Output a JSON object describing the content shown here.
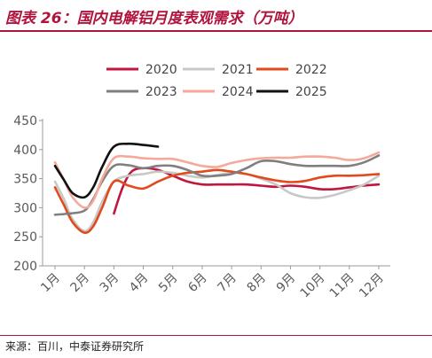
{
  "title": "图表 26：国内电解铝月度表观需求（万吨）",
  "source": "来源：百川，中泰证券研究所",
  "chart_data": {
    "type": "line",
    "title": "国内电解铝月度表观需求（万吨）",
    "xlabel": "",
    "ylabel": "",
    "ylim": [
      200,
      450
    ],
    "yticks": [
      200,
      250,
      300,
      350,
      400,
      450
    ],
    "categories": [
      "1月",
      "2月",
      "3月",
      "4月",
      "5月",
      "6月",
      "7月",
      "8月",
      "9月",
      "10月",
      "11月",
      "12月"
    ],
    "grid": false,
    "legend_position": "top",
    "series": [
      {
        "name": "2020",
        "color": "#c0163f",
        "x": [
          3.0,
          3.3,
          3.6,
          4.0,
          4.5,
          5.0,
          5.5,
          6.0,
          6.5,
          7.0,
          7.5,
          8.0,
          8.5,
          9.0,
          9.5,
          10.0,
          10.5,
          11.0,
          11.5,
          12.0
        ],
        "values": [
          290,
          335,
          362,
          368,
          365,
          355,
          345,
          340,
          340,
          340,
          340,
          338,
          336,
          338,
          336,
          332,
          332,
          335,
          338,
          340
        ]
      },
      {
        "name": "2021",
        "color": "#c8c8c8",
        "x": [
          1.0,
          1.3,
          1.6,
          2.0,
          2.3,
          2.6,
          3.0,
          3.5,
          4.0,
          4.5,
          5.0,
          5.5,
          6.0,
          6.5,
          7.0,
          7.5,
          8.0,
          8.5,
          9.0,
          9.5,
          10.0,
          10.5,
          11.0,
          11.5,
          12.0
        ],
        "values": [
          345,
          315,
          280,
          260,
          275,
          310,
          345,
          355,
          358,
          362,
          360,
          355,
          352,
          356,
          360,
          358,
          350,
          340,
          325,
          318,
          317,
          322,
          330,
          340,
          355
        ]
      },
      {
        "name": "2022",
        "color": "#e04a1c",
        "x": [
          1.0,
          1.3,
          1.6,
          2.0,
          2.3,
          2.6,
          3.0,
          3.5,
          4.0,
          4.5,
          5.0,
          5.5,
          6.0,
          6.5,
          7.0,
          7.5,
          8.0,
          8.5,
          9.0,
          9.5,
          10.0,
          10.5,
          11.0,
          11.5,
          12.0
        ],
        "values": [
          335,
          305,
          275,
          257,
          268,
          300,
          345,
          338,
          333,
          345,
          355,
          360,
          362,
          365,
          362,
          358,
          352,
          347,
          344,
          346,
          352,
          355,
          355,
          356,
          358
        ]
      },
      {
        "name": "2023",
        "color": "#7f7f7f",
        "x": [
          1.0,
          1.5,
          2.0,
          2.3,
          2.6,
          3.0,
          3.5,
          4.0,
          4.5,
          5.0,
          5.5,
          6.0,
          6.5,
          7.0,
          7.5,
          8.0,
          8.5,
          9.0,
          9.5,
          10.0,
          10.5,
          11.0,
          11.5,
          12.0
        ],
        "values": [
          288,
          290,
          295,
          315,
          345,
          372,
          373,
          368,
          372,
          372,
          365,
          355,
          355,
          358,
          368,
          380,
          380,
          375,
          372,
          372,
          372,
          372,
          378,
          390
        ]
      },
      {
        "name": "2024",
        "color": "#f4a99a",
        "x": [
          1.0,
          1.3,
          1.6,
          2.0,
          2.3,
          2.6,
          3.0,
          3.5,
          4.0,
          4.5,
          5.0,
          5.5,
          6.0,
          6.5,
          7.0,
          7.5,
          8.0,
          8.5,
          9.0,
          9.5,
          10.0,
          10.5,
          11.0,
          11.5,
          12.0
        ],
        "values": [
          378,
          348,
          318,
          300,
          312,
          350,
          385,
          388,
          385,
          384,
          384,
          378,
          372,
          370,
          377,
          382,
          385,
          386,
          386,
          388,
          388,
          386,
          382,
          385,
          395
        ]
      },
      {
        "name": "2025",
        "color": "#111111",
        "x": [
          1.0,
          1.3,
          1.6,
          2.0,
          2.3,
          2.6,
          3.0,
          3.5,
          4.0,
          4.5
        ],
        "values": [
          372,
          348,
          325,
          318,
          335,
          370,
          405,
          410,
          408,
          405
        ]
      }
    ]
  }
}
